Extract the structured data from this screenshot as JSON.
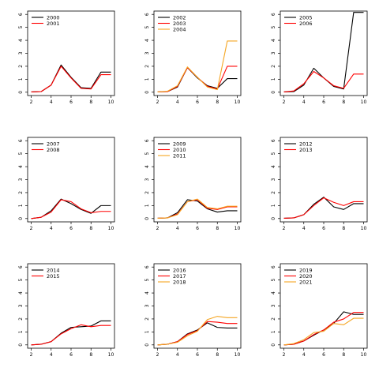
{
  "chart_data": [
    {
      "type": "line",
      "x": [
        2,
        3,
        4,
        5,
        6,
        7,
        8,
        9,
        10
      ],
      "xlim": [
        2,
        10
      ],
      "ylim": [
        0,
        6
      ],
      "xticks": [
        2,
        4,
        6,
        8,
        10
      ],
      "yticks": [
        0,
        1,
        2,
        3,
        4,
        5,
        6
      ],
      "legend": "top-left",
      "series": [
        {
          "name": "2000",
          "color": "#000000",
          "values": [
            0.02,
            0.05,
            0.55,
            2.1,
            1.15,
            0.35,
            0.3,
            1.55,
            1.55
          ]
        },
        {
          "name": "2001",
          "color": "#ff0000",
          "values": [
            0.02,
            0.05,
            0.55,
            2.0,
            1.1,
            0.3,
            0.25,
            1.35,
            1.35
          ]
        }
      ]
    },
    {
      "type": "line",
      "x": [
        2,
        3,
        4,
        5,
        6,
        7,
        8,
        9,
        10
      ],
      "xlim": [
        2,
        10
      ],
      "ylim": [
        0,
        6
      ],
      "xticks": [
        2,
        4,
        6,
        8,
        10
      ],
      "yticks": [
        0,
        1,
        2,
        3,
        4,
        5,
        6
      ],
      "legend": "top-left",
      "series": [
        {
          "name": "2002",
          "color": "#000000",
          "values": [
            0.02,
            0.05,
            0.4,
            1.9,
            1.1,
            0.5,
            0.3,
            1.05,
            1.05
          ]
        },
        {
          "name": "2003",
          "color": "#ff0000",
          "values": [
            0.02,
            0.05,
            0.45,
            1.9,
            1.15,
            0.45,
            0.25,
            2.0,
            2.0
          ]
        },
        {
          "name": "2004",
          "color": "#f5a623",
          "values": [
            0.02,
            0.08,
            0.5,
            1.95,
            1.15,
            0.4,
            0.2,
            3.95,
            3.95
          ]
        }
      ]
    },
    {
      "type": "line",
      "x": [
        2,
        3,
        4,
        5,
        6,
        7,
        8,
        9,
        10
      ],
      "xlim": [
        2,
        10
      ],
      "ylim": [
        0,
        6
      ],
      "xticks": [
        2,
        4,
        6,
        8,
        10
      ],
      "yticks": [
        0,
        1,
        2,
        3,
        4,
        5,
        6
      ],
      "legend": "top-left",
      "series": [
        {
          "name": "2005",
          "color": "#000000",
          "values": [
            0.02,
            0.05,
            0.55,
            1.85,
            1.1,
            0.45,
            0.25,
            6.15,
            6.15
          ]
        },
        {
          "name": "2006",
          "color": "#ff0000",
          "values": [
            0.02,
            0.1,
            0.65,
            1.6,
            1.1,
            0.5,
            0.3,
            1.4,
            1.4
          ]
        }
      ]
    },
    {
      "type": "line",
      "x": [
        2,
        3,
        4,
        5,
        6,
        7,
        8,
        9,
        10
      ],
      "xlim": [
        2,
        10
      ],
      "ylim": [
        0,
        6
      ],
      "xticks": [
        2,
        4,
        6,
        8,
        10
      ],
      "yticks": [
        0,
        1,
        2,
        3,
        4,
        5,
        6
      ],
      "legend": "top-left",
      "series": [
        {
          "name": "2007",
          "color": "#000000",
          "values": [
            0.0,
            0.1,
            0.6,
            1.5,
            1.15,
            0.7,
            0.4,
            1.0,
            1.0
          ]
        },
        {
          "name": "2008",
          "color": "#ff0000",
          "values": [
            0.0,
            0.1,
            0.5,
            1.45,
            1.3,
            0.75,
            0.45,
            0.55,
            0.55
          ]
        }
      ]
    },
    {
      "type": "line",
      "x": [
        2,
        3,
        4,
        5,
        6,
        7,
        8,
        9,
        10
      ],
      "xlim": [
        2,
        10
      ],
      "ylim": [
        0,
        6
      ],
      "xticks": [
        2,
        4,
        6,
        8,
        10
      ],
      "yticks": [
        0,
        1,
        2,
        3,
        4,
        5,
        6
      ],
      "legend": "top-left",
      "series": [
        {
          "name": "2009",
          "color": "#000000",
          "values": [
            0.02,
            0.05,
            0.45,
            1.45,
            1.35,
            0.75,
            0.5,
            0.6,
            0.6
          ]
        },
        {
          "name": "2010",
          "color": "#ff0000",
          "values": [
            0.02,
            0.05,
            0.35,
            1.3,
            1.45,
            0.8,
            0.7,
            0.9,
            0.9
          ]
        },
        {
          "name": "2011",
          "color": "#f5a623",
          "values": [
            0.02,
            0.05,
            0.3,
            1.3,
            1.5,
            0.85,
            0.75,
            0.95,
            0.95
          ]
        }
      ]
    },
    {
      "type": "line",
      "x": [
        2,
        3,
        4,
        5,
        6,
        7,
        8,
        9,
        10
      ],
      "xlim": [
        2,
        10
      ],
      "ylim": [
        0,
        6
      ],
      "xticks": [
        2,
        4,
        6,
        8,
        10
      ],
      "yticks": [
        0,
        1,
        2,
        3,
        4,
        5,
        6
      ],
      "legend": "top-left",
      "series": [
        {
          "name": "2012",
          "color": "#000000",
          "values": [
            0.02,
            0.05,
            0.3,
            1.1,
            1.65,
            0.9,
            0.7,
            1.15,
            1.15
          ]
        },
        {
          "name": "2013",
          "color": "#ff0000",
          "values": [
            0.02,
            0.05,
            0.3,
            1.0,
            1.6,
            1.25,
            1.0,
            1.3,
            1.3
          ]
        }
      ]
    },
    {
      "type": "line",
      "x": [
        2,
        3,
        4,
        5,
        6,
        7,
        8,
        9,
        10
      ],
      "xlim": [
        2,
        10
      ],
      "ylim": [
        0,
        6
      ],
      "xticks": [
        2,
        4,
        6,
        8,
        10
      ],
      "yticks": [
        0,
        1,
        2,
        3,
        4,
        5,
        6
      ],
      "legend": "top-left",
      "series": [
        {
          "name": "2014",
          "color": "#000000",
          "values": [
            0.0,
            0.05,
            0.25,
            0.9,
            1.35,
            1.4,
            1.45,
            1.85,
            1.85
          ]
        },
        {
          "name": "2015",
          "color": "#ff0000",
          "values": [
            0.0,
            0.05,
            0.25,
            0.85,
            1.25,
            1.55,
            1.4,
            1.5,
            1.5
          ]
        }
      ]
    },
    {
      "type": "line",
      "x": [
        2,
        3,
        4,
        5,
        6,
        7,
        8,
        9,
        10
      ],
      "xlim": [
        2,
        10
      ],
      "ylim": [
        0,
        6
      ],
      "xticks": [
        2,
        4,
        6,
        8,
        10
      ],
      "yticks": [
        0,
        1,
        2,
        3,
        4,
        5,
        6
      ],
      "legend": "top-left",
      "series": [
        {
          "name": "2016",
          "color": "#000000",
          "values": [
            0.0,
            0.05,
            0.25,
            0.85,
            1.15,
            1.7,
            1.35,
            1.3,
            1.3
          ]
        },
        {
          "name": "2017",
          "color": "#ff0000",
          "values": [
            0.0,
            0.05,
            0.25,
            0.8,
            1.1,
            1.8,
            1.75,
            1.65,
            1.65
          ]
        },
        {
          "name": "2018",
          "color": "#f5a623",
          "values": [
            0.0,
            0.05,
            0.2,
            0.7,
            1.05,
            1.95,
            2.2,
            2.1,
            2.1
          ]
        }
      ]
    },
    {
      "type": "line",
      "x": [
        2,
        3,
        4,
        5,
        6,
        7,
        8,
        9,
        10
      ],
      "xlim": [
        2,
        10
      ],
      "ylim": [
        0,
        6
      ],
      "xticks": [
        2,
        4,
        6,
        8,
        10
      ],
      "yticks": [
        0,
        1,
        2,
        3,
        4,
        5,
        6
      ],
      "legend": "top-left",
      "series": [
        {
          "name": "2019",
          "color": "#000000",
          "values": [
            0.0,
            0.05,
            0.3,
            0.75,
            1.15,
            1.65,
            2.55,
            2.35,
            2.35
          ]
        },
        {
          "name": "2020",
          "color": "#ff0000",
          "values": [
            0.0,
            0.05,
            0.3,
            0.8,
            1.15,
            1.75,
            2.0,
            2.5,
            2.5
          ]
        },
        {
          "name": "2021",
          "color": "#f5a623",
          "values": [
            0.0,
            0.1,
            0.4,
            0.95,
            1.05,
            1.65,
            1.55,
            2.05,
            2.05
          ]
        }
      ]
    }
  ]
}
